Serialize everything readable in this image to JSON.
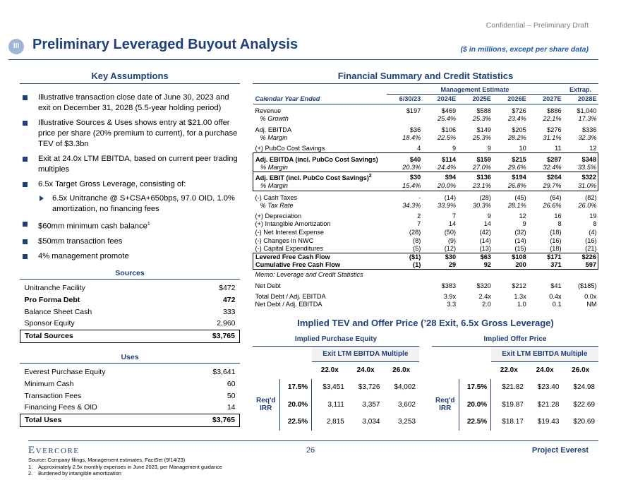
{
  "header": {
    "confidential": "Confidential – Preliminary Draft",
    "section": "III",
    "title": "Preliminary Leveraged Buyout Analysis",
    "subtitle": "($ in millions, except per share data)"
  },
  "assumptions": {
    "title": "Key Assumptions",
    "bullets": [
      {
        "text": "Illustrative transaction close date of June 30, 2023 and exit on December 31, 2028 (5.5-year holding period)"
      },
      {
        "text": "Illustrative Sources & Uses shows entry at $21.00 offer price per share (20% premium to current), for a purchase TEV of $3.3bn"
      },
      {
        "text": "Exit at 24.0x LTM EBITDA, based on current peer trading multiples"
      },
      {
        "text": "6.5x Target Gross Leverage, consisting of:",
        "sub_bullets": [
          "6.5x Unitranche @ S+CSA+650bps, 97.0 OID, 1.0% amortization, no financing fees"
        ]
      },
      {
        "text": "$60mm minimum cash balance",
        "sup": "1"
      },
      {
        "text": "$50mm transaction fees"
      },
      {
        "text": "4% management promote"
      }
    ]
  },
  "sources": {
    "title": "Sources",
    "rows": [
      [
        "Unitranche Facility",
        "$472"
      ],
      [
        "Pro Forma Debt",
        "472"
      ],
      [
        "Balance Sheet Cash",
        "333"
      ],
      [
        "Sponsor Equity",
        "2,960"
      ]
    ],
    "total": [
      "Total Sources",
      "$3,765"
    ]
  },
  "uses": {
    "title": "Uses",
    "rows": [
      [
        "Everest Purchase Equity",
        "$3,641"
      ],
      [
        "Minimum Cash",
        "60"
      ],
      [
        "Transaction Fees",
        "50"
      ],
      [
        "Financing Fees & OID",
        "14"
      ]
    ],
    "total": [
      "Total Uses",
      "$3,765"
    ]
  },
  "financial": {
    "title": "Financial Summary and Credit Statistics",
    "groups": [
      "Management Estimate",
      "Extrap."
    ],
    "columns_label": "Calendar Year Ended",
    "columns": [
      "6/30/23",
      "2024E",
      "2025E",
      "2026E",
      "2027E",
      "2028E"
    ],
    "rows": [
      {
        "label": "Revenue",
        "values": [
          "$197",
          "$469",
          "$588",
          "$726",
          "$886",
          "$1,040"
        ]
      },
      {
        "label": "% Growth",
        "values": [
          null,
          "25.4%",
          "25.3%",
          "23.4%",
          "22.1%",
          "17.3%"
        ]
      },
      {
        "label": "Adj. EBITDA",
        "values": [
          "$36",
          "$106",
          "$149",
          "$205",
          "$276",
          "$336"
        ]
      },
      {
        "label": "% Margin",
        "values": [
          "18.4%",
          "22.5%",
          "25.3%",
          "28.2%",
          "31.1%",
          "32.3%"
        ]
      },
      {
        "label": "(+) PubCo Cost Savings",
        "values": [
          "4",
          "9",
          "9",
          "10",
          "11",
          "12"
        ]
      },
      {
        "label": "Adj. EBITDA (incl. PubCo Cost Savings)",
        "values": [
          "$40",
          "$114",
          "$159",
          "$215",
          "$287",
          "$348"
        ]
      },
      {
        "label": "% Margin",
        "values": [
          "20.3%",
          "24.4%",
          "27.0%",
          "29.6%",
          "32.4%",
          "33.5%"
        ]
      },
      {
        "label": "Adj. EBIT (incl. PubCo Cost Savings)",
        "sup": "2",
        "values": [
          "$30",
          "$94",
          "$136",
          "$194",
          "$264",
          "$322"
        ]
      },
      {
        "label": "% Margin",
        "values": [
          "15.4%",
          "20.0%",
          "23.1%",
          "26.8%",
          "29.7%",
          "31.0%"
        ]
      },
      {
        "label": "(-) Cash Taxes",
        "values": [
          "-",
          "(14)",
          "(28)",
          "(45)",
          "(64)",
          "(82)"
        ]
      },
      {
        "label": "% Tax Rate",
        "values": [
          "34.3%",
          "33.9%",
          "30.3%",
          "28.1%",
          "26.6%",
          "26.0%"
        ]
      },
      {
        "label": "(+) Depreciation",
        "values": [
          "2",
          "7",
          "9",
          "12",
          "16",
          "19"
        ]
      },
      {
        "label": "(+) Intangible Amortization",
        "values": [
          "7",
          "14",
          "14",
          "9",
          "8",
          "8"
        ]
      },
      {
        "label": "(-) Net Interest Expense",
        "values": [
          "(28)",
          "(50)",
          "(42)",
          "(32)",
          "(18)",
          "(4)"
        ]
      },
      {
        "label": "(-) Changes in NWC",
        "values": [
          "(8)",
          "(9)",
          "(14)",
          "(14)",
          "(16)",
          "(16)"
        ]
      },
      {
        "label": "(-) Capital Expenditures",
        "values": [
          "(5)",
          "(12)",
          "(13)",
          "(15)",
          "(18)",
          "(21)"
        ]
      },
      {
        "label": "Levered Free Cash Flow",
        "values": [
          "($1)",
          "$30",
          "$63",
          "$108",
          "$171",
          "$226"
        ]
      },
      {
        "label": "Cumulative Free Cash Flow",
        "values": [
          "(1)",
          "29",
          "92",
          "200",
          "371",
          "597"
        ]
      }
    ],
    "memo": {
      "label": "Memo: Leverage and Credit Statistics",
      "rows": [
        {
          "label": "Net Debt",
          "values": [
            null,
            "$383",
            "$320",
            "$212",
            "$41",
            "($185)"
          ]
        },
        {
          "label": "Total Debt / Adj. EBITDA",
          "values": [
            null,
            "3.9x",
            "2.4x",
            "1.3x",
            "0.4x",
            "0.0x"
          ]
        },
        {
          "label": "Net Debt / Adj. EBITDA",
          "values": [
            null,
            "3.3",
            "2.0",
            "1.0",
            "0.1",
            "NM"
          ]
        }
      ]
    }
  },
  "implied": {
    "title": "Implied TEV and Offer Price (’28 Exit, 6.5x Gross Leverage)",
    "panels": [
      {
        "title": "Implied Purchase Equity",
        "header": "Exit LTM EBITDA Multiple",
        "columns": [
          "22.0x",
          "24.0x",
          "26.0x"
        ],
        "row_label": "Req'd IRR",
        "rows": [
          {
            "irr": "17.5%",
            "values": [
              "$3,451",
              "$3,726",
              "$4,002"
            ]
          },
          {
            "irr": "20.0%",
            "values": [
              "3,111",
              "3,357",
              "3,602"
            ]
          },
          {
            "irr": "22.5%",
            "values": [
              "2,815",
              "3,034",
              "3,253"
            ]
          }
        ]
      },
      {
        "title": "Implied Offer Price",
        "header": "Exit LTM EBITDA Multiple",
        "columns": [
          "22.0x",
          "24.0x",
          "26.0x"
        ],
        "row_label": "Req'd IRR",
        "rows": [
          {
            "irr": "17.5%",
            "values": [
              "$21.82",
              "$23.40",
              "$24.98"
            ]
          },
          {
            "irr": "20.0%",
            "values": [
              "$19.87",
              "$21.28",
              "$22.69"
            ]
          },
          {
            "irr": "22.5%",
            "values": [
              "$18.17",
              "$19.43",
              "$20.69"
            ]
          }
        ]
      }
    ]
  },
  "footer": {
    "logo": "Evercore",
    "page": "26",
    "project": "Project Everest",
    "source": "Source: Company filings, Management estimates, FactSet (9/14/23)",
    "notes": [
      {
        "marker": "1.",
        "text": "Approximately 2.5x monthly expenses in June 2023, per Management guidance"
      },
      {
        "marker": "2.",
        "text": "Burdened by intangible amortization"
      }
    ]
  }
}
